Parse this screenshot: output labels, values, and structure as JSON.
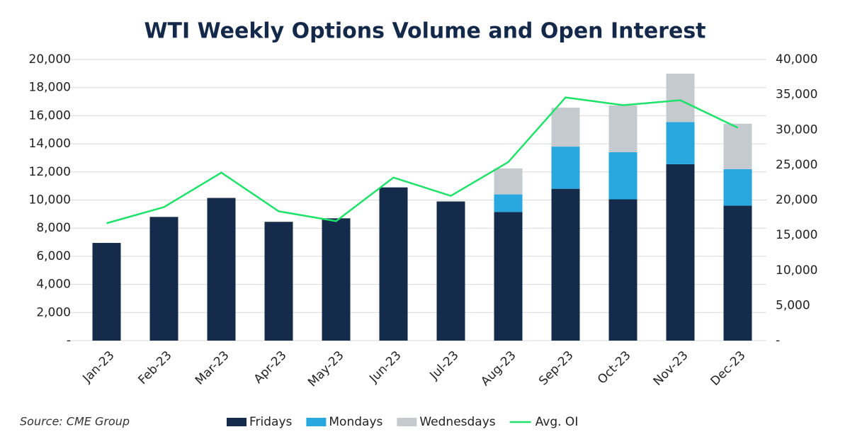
{
  "chart_data": {
    "type": "bar-line",
    "title": "WTI Weekly Options Volume and Open Interest",
    "source": "Source: CME Group",
    "categories": [
      "Jan-23",
      "Feb-23",
      "Mar-23",
      "Apr-23",
      "May-23",
      "Jun-23",
      "Jul-23",
      "Aug-23",
      "Sep-23",
      "Oct-23",
      "Nov-23",
      "Dec-23"
    ],
    "series": [
      {
        "name": "Fridays",
        "color": "#142b4c",
        "type": "bar",
        "values": [
          6950,
          8800,
          10150,
          8450,
          8700,
          10900,
          9900,
          9150,
          10800,
          10050,
          12550,
          9600
        ]
      },
      {
        "name": "Mondays",
        "color": "#29a8e0",
        "type": "bar",
        "values": [
          0,
          0,
          0,
          0,
          0,
          0,
          0,
          1250,
          3000,
          3350,
          3000,
          2600
        ]
      },
      {
        "name": "Wednesdays",
        "color": "#c5cacf",
        "type": "bar",
        "values": [
          0,
          0,
          0,
          0,
          0,
          0,
          0,
          1850,
          2770,
          3330,
          3440,
          3230
        ]
      },
      {
        "name": "Avg. OI",
        "color": "#1ee26a",
        "type": "line",
        "axis": "y2",
        "values": [
          16700,
          19000,
          23900,
          18400,
          17000,
          23200,
          20600,
          25400,
          34600,
          33500,
          34200,
          30300
        ]
      }
    ],
    "ylim": [
      0,
      20000
    ],
    "yticks": [
      {
        "value": 0,
        "label": "-"
      },
      {
        "value": 2000,
        "label": "2,000"
      },
      {
        "value": 4000,
        "label": "4,000"
      },
      {
        "value": 6000,
        "label": "6,000"
      },
      {
        "value": 8000,
        "label": "8,000"
      },
      {
        "value": 10000,
        "label": "10,000"
      },
      {
        "value": 12000,
        "label": "12,000"
      },
      {
        "value": 14000,
        "label": "14,000"
      },
      {
        "value": 16000,
        "label": "16,000"
      },
      {
        "value": 18000,
        "label": "18,000"
      },
      {
        "value": 20000,
        "label": "20,000"
      }
    ],
    "y2lim": [
      0,
      40000
    ],
    "y2ticks": [
      {
        "value": 0,
        "label": "-"
      },
      {
        "value": 5000,
        "label": "5,000"
      },
      {
        "value": 10000,
        "label": "10,000"
      },
      {
        "value": 15000,
        "label": "15,000"
      },
      {
        "value": 20000,
        "label": "20,000"
      },
      {
        "value": 25000,
        "label": "25,000"
      },
      {
        "value": 30000,
        "label": "30,000"
      },
      {
        "value": 35000,
        "label": "35,000"
      },
      {
        "value": 40000,
        "label": "40,000"
      }
    ],
    "grid": true
  }
}
